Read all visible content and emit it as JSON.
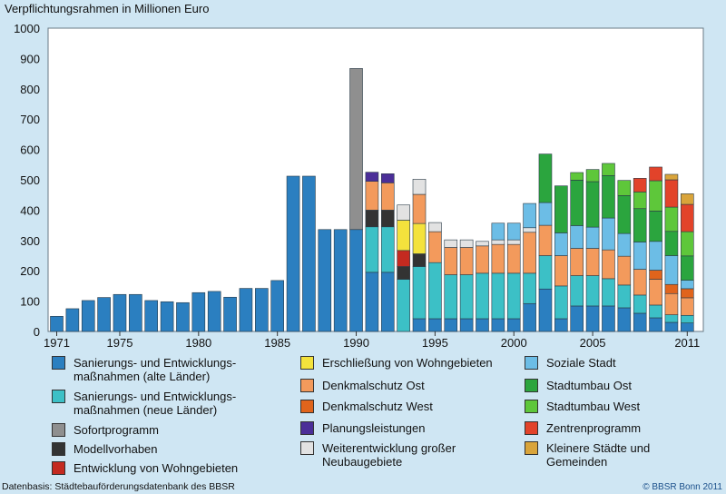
{
  "chart_data": {
    "type": "bar",
    "stacked": true,
    "ylabel": "Verpflichtungsrahmen in Millionen Euro",
    "ylim": [
      0,
      1000
    ],
    "yticks": [
      0,
      100,
      200,
      300,
      400,
      500,
      600,
      700,
      800,
      900,
      1000
    ],
    "xticks": [
      1971,
      1975,
      1980,
      1985,
      1990,
      1995,
      2000,
      2005,
      2011
    ],
    "grid": false,
    "legend_position": "bottom",
    "categories": [
      1971,
      1972,
      1973,
      1974,
      1975,
      1976,
      1977,
      1978,
      1979,
      1980,
      1981,
      1982,
      1983,
      1984,
      1985,
      1986,
      1987,
      1988,
      1989,
      1990,
      1991,
      1992,
      1993,
      1994,
      1995,
      1996,
      1997,
      1998,
      1999,
      2000,
      2001,
      2002,
      2003,
      2004,
      2005,
      2006,
      2007,
      2008,
      2009,
      2010,
      2011
    ],
    "series": [
      {
        "name": "Sanierungs- und Entwicklungs-\nmaßnahmen (alte Länder)",
        "color": "#2b7fc0",
        "values": [
          50,
          75,
          102,
          112,
          122,
          122,
          102,
          98,
          95,
          128,
          132,
          113,
          142,
          142,
          168,
          512,
          512,
          336,
          336,
          336,
          195,
          195,
          0,
          42,
          42,
          42,
          42,
          42,
          42,
          42,
          92,
          140,
          42,
          84,
          84,
          84,
          78,
          60,
          45,
          30,
          28
        ]
      },
      {
        "name": "Sanierungs- und Entwicklungs-\nmaßnahmen (neue Länder)",
        "color": "#3cc0c6",
        "values": [
          0,
          0,
          0,
          0,
          0,
          0,
          0,
          0,
          0,
          0,
          0,
          0,
          0,
          0,
          0,
          0,
          0,
          0,
          0,
          0,
          150,
          150,
          172,
          172,
          185,
          145,
          145,
          150,
          150,
          150,
          100,
          110,
          108,
          100,
          100,
          90,
          75,
          60,
          42,
          25,
          25
        ]
      },
      {
        "name": "Sofortprogramm",
        "color": "#8f8f8f",
        "values": [
          0,
          0,
          0,
          0,
          0,
          0,
          0,
          0,
          0,
          0,
          0,
          0,
          0,
          0,
          0,
          0,
          0,
          0,
          0,
          531,
          0,
          0,
          0,
          0,
          0,
          0,
          0,
          0,
          0,
          0,
          0,
          0,
          0,
          0,
          0,
          0,
          0,
          0,
          0,
          0,
          0
        ]
      },
      {
        "name": "Modellvorhaben",
        "color": "#333333",
        "values": [
          0,
          0,
          0,
          0,
          0,
          0,
          0,
          0,
          0,
          0,
          0,
          0,
          0,
          0,
          0,
          0,
          0,
          0,
          0,
          0,
          55,
          55,
          42,
          42,
          0,
          0,
          0,
          0,
          0,
          0,
          0,
          0,
          0,
          0,
          0,
          0,
          0,
          0,
          0,
          0,
          0
        ]
      },
      {
        "name": "Entwicklung von Wohngebieten",
        "color": "#c42a20",
        "values": [
          0,
          0,
          0,
          0,
          0,
          0,
          0,
          0,
          0,
          0,
          0,
          0,
          0,
          0,
          0,
          0,
          0,
          0,
          0,
          0,
          0,
          0,
          53,
          0,
          0,
          0,
          0,
          0,
          0,
          0,
          0,
          0,
          0,
          0,
          0,
          0,
          0,
          0,
          0,
          0,
          0
        ]
      },
      {
        "name": "Erschließung von Wohngebieten",
        "color": "#f4e23c",
        "values": [
          0,
          0,
          0,
          0,
          0,
          0,
          0,
          0,
          0,
          0,
          0,
          0,
          0,
          0,
          0,
          0,
          0,
          0,
          0,
          0,
          0,
          0,
          100,
          100,
          0,
          0,
          0,
          0,
          0,
          0,
          0,
          0,
          0,
          0,
          0,
          0,
          0,
          0,
          0,
          0,
          0
        ]
      },
      {
        "name": "Denkmalschutz Ost",
        "color": "#f39a5c",
        "values": [
          0,
          0,
          0,
          0,
          0,
          0,
          0,
          0,
          0,
          0,
          0,
          0,
          0,
          0,
          0,
          0,
          0,
          0,
          0,
          0,
          95,
          90,
          0,
          96,
          102,
          90,
          90,
          90,
          95,
          95,
          135,
          100,
          100,
          90,
          90,
          95,
          95,
          85,
          85,
          70,
          58
        ]
      },
      {
        "name": "Denkmalschutz West",
        "color": "#e0641c",
        "values": [
          0,
          0,
          0,
          0,
          0,
          0,
          0,
          0,
          0,
          0,
          0,
          0,
          0,
          0,
          0,
          0,
          0,
          0,
          0,
          0,
          0,
          0,
          0,
          0,
          0,
          0,
          0,
          0,
          0,
          0,
          0,
          0,
          0,
          0,
          0,
          0,
          0,
          0,
          30,
          30,
          30
        ]
      },
      {
        "name": "Planungsleistungen",
        "color": "#4b2e98",
        "values": [
          0,
          0,
          0,
          0,
          0,
          0,
          0,
          0,
          0,
          0,
          0,
          0,
          0,
          0,
          0,
          0,
          0,
          0,
          0,
          0,
          30,
          30,
          0,
          0,
          0,
          0,
          0,
          0,
          0,
          0,
          0,
          0,
          0,
          0,
          0,
          0,
          0,
          0,
          0,
          0,
          0
        ]
      },
      {
        "name": "Weiterentwicklung großer\nNeubaugebiete",
        "color": "#e2e2e2",
        "values": [
          0,
          0,
          0,
          0,
          0,
          0,
          0,
          0,
          0,
          0,
          0,
          0,
          0,
          0,
          0,
          0,
          0,
          0,
          0,
          0,
          0,
          0,
          50,
          50,
          30,
          25,
          25,
          15,
          15,
          15,
          15,
          0,
          0,
          0,
          0,
          0,
          0,
          0,
          0,
          0,
          0
        ]
      },
      {
        "name": "Soziale Stadt",
        "color": "#6cbde6",
        "values": [
          0,
          0,
          0,
          0,
          0,
          0,
          0,
          0,
          0,
          0,
          0,
          0,
          0,
          0,
          0,
          0,
          0,
          0,
          0,
          0,
          0,
          0,
          0,
          0,
          0,
          0,
          0,
          0,
          55,
          55,
          80,
          75,
          75,
          75,
          70,
          105,
          75,
          90,
          95,
          95,
          28
        ]
      },
      {
        "name": "Stadtumbau Ost",
        "color": "#2ba53e",
        "values": [
          0,
          0,
          0,
          0,
          0,
          0,
          0,
          0,
          0,
          0,
          0,
          0,
          0,
          0,
          0,
          0,
          0,
          0,
          0,
          0,
          0,
          0,
          0,
          0,
          0,
          0,
          0,
          0,
          0,
          0,
          0,
          160,
          155,
          150,
          150,
          140,
          125,
          110,
          100,
          80,
          80
        ]
      },
      {
        "name": "Stadtumbau West",
        "color": "#5ec73a",
        "values": [
          0,
          0,
          0,
          0,
          0,
          0,
          0,
          0,
          0,
          0,
          0,
          0,
          0,
          0,
          0,
          0,
          0,
          0,
          0,
          0,
          0,
          0,
          0,
          0,
          0,
          0,
          0,
          0,
          0,
          0,
          0,
          0,
          0,
          25,
          40,
          40,
          50,
          55,
          100,
          80,
          80
        ]
      },
      {
        "name": "Zentrenprogramm",
        "color": "#e2432a",
        "values": [
          0,
          0,
          0,
          0,
          0,
          0,
          0,
          0,
          0,
          0,
          0,
          0,
          0,
          0,
          0,
          0,
          0,
          0,
          0,
          0,
          0,
          0,
          0,
          0,
          0,
          0,
          0,
          0,
          0,
          0,
          0,
          0,
          0,
          0,
          0,
          0,
          0,
          45,
          45,
          90,
          90
        ]
      },
      {
        "name": "Kleinere Städte und\nGemeinden",
        "color": "#d9a43a",
        "values": [
          0,
          0,
          0,
          0,
          0,
          0,
          0,
          0,
          0,
          0,
          0,
          0,
          0,
          0,
          0,
          0,
          0,
          0,
          0,
          0,
          0,
          0,
          0,
          0,
          0,
          0,
          0,
          0,
          0,
          0,
          0,
          0,
          0,
          0,
          0,
          0,
          0,
          0,
          0,
          18,
          35
        ]
      }
    ]
  },
  "footer": {
    "source": "Datenbasis: Städtebauförderungsdatenbank des BBSR",
    "copyright": "© BBSR Bonn 2011"
  }
}
